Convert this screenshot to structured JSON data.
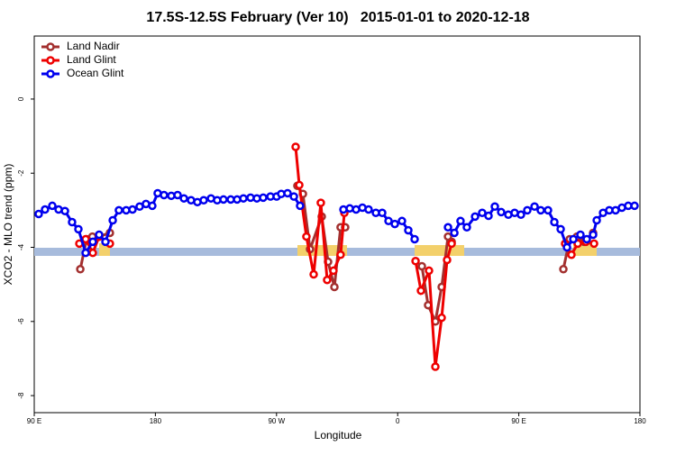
{
  "chart_data": {
    "type": "line",
    "title": "17.5S-12.5S February (Ver 10)   2015-01-01 to 2020-12-18",
    "xlabel": "Longitude",
    "ylabel": "XCO2 - MLO trend (ppm)",
    "xlim": [
      90,
      540
    ],
    "ylim": [
      -8.46,
      1.7
    ],
    "xticks": [
      {
        "value": 90,
        "label": "90 E"
      },
      180,
      {
        "value": 270,
        "label": "90 W"
      },
      {
        "value": 360,
        "label": "0"
      },
      {
        "value": 450,
        "label": "90 E"
      },
      {
        "value": 540,
        "label": "180"
      }
    ],
    "yticks": [
      -8,
      -6,
      -4,
      -2,
      0
    ],
    "legend": "top-left",
    "series": [
      {
        "name": "Land Nadir",
        "color": "#a3302f",
        "x": [
          124.2,
          128.9,
          133.2,
          138.2,
          146.2,
          215,
          285.5,
          289.6,
          294.9,
          303.6,
          308.3,
          313.0,
          317.6,
          321.0,
          350,
          378.0,
          382.6,
          388.0,
          392.7,
          397.4,
          400.1,
          440,
          483.1,
          487.8,
          493.2,
          498.5,
          505.2
        ],
        "values": [
          -4.59,
          -3.78,
          -3.71,
          -3.71,
          -3.61,
          null,
          -2.34,
          -2.56,
          -4.05,
          -3.17,
          -4.39,
          -5.07,
          -3.46,
          -3.46,
          null,
          -4.51,
          -5.56,
          -6.0,
          -5.07,
          -3.71,
          -3.85,
          null,
          -4.59,
          -3.78,
          -3.71,
          -3.85,
          -3.61
        ]
      },
      {
        "name": "Land Glint",
        "color": "#ee0000",
        "x": [
          123.5,
          128.2,
          133.5,
          138.2,
          146.2,
          215,
          284.2,
          286.9,
          292.2,
          297.6,
          302.9,
          307.6,
          312.3,
          317.6,
          320.4,
          350,
          373.3,
          377.3,
          383.3,
          388.0,
          392.7,
          396.7,
          400.1,
          440,
          484.4,
          489.1,
          493.8,
          499.8,
          505.9
        ],
        "values": [
          -3.9,
          -3.78,
          -4.15,
          -3.71,
          -3.9,
          null,
          -1.29,
          -2.32,
          -3.71,
          -4.73,
          -2.8,
          -4.88,
          -4.63,
          -4.2,
          -3.07,
          null,
          -4.37,
          -5.17,
          -4.63,
          -7.22,
          -5.9,
          -4.34,
          -3.9,
          null,
          -3.9,
          -4.2,
          -3.9,
          -3.85,
          -3.9
        ]
      },
      {
        "name": "Ocean Glint",
        "color": "#0000ee",
        "x": [
          93.3,
          98.0,
          103.4,
          108.1,
          112.8,
          118.1,
          122.8,
          128.2,
          133.5,
          138.2,
          142.9,
          148.3,
          152.9,
          158.3,
          163.0,
          168.3,
          173.0,
          177.7,
          181.7,
          186.4,
          191.8,
          196.5,
          201.2,
          206.5,
          211.2,
          215.9,
          221.3,
          225.9,
          230.6,
          236.0,
          240.7,
          245.4,
          250.7,
          255.4,
          260.1,
          265.5,
          270.1,
          273.5,
          278.2,
          282.9,
          287.5,
          303,
          319.7,
          324.4,
          329.1,
          333.8,
          338.4,
          343.8,
          348.5,
          353.2,
          357.9,
          363.2,
          367.9,
          372.6,
          385,
          397.4,
          402.1,
          406.7,
          411.4,
          417.5,
          422.8,
          427.5,
          432.2,
          436.9,
          442.2,
          446.9,
          451.6,
          456.3,
          461.7,
          466.3,
          471.7,
          476.4,
          481.1,
          485.8,
          490.5,
          495.8,
          500.5,
          505.2,
          507.9,
          512.6,
          517.2,
          521.9,
          526.6,
          531.3,
          536.0
        ],
        "values": [
          -3.1,
          -2.98,
          -2.88,
          -2.98,
          -3.02,
          -3.32,
          -3.51,
          -4.15,
          -3.85,
          -3.66,
          -3.85,
          -3.27,
          -3.0,
          -3.0,
          -2.98,
          -2.9,
          -2.83,
          -2.88,
          -2.54,
          -2.59,
          -2.61,
          -2.59,
          -2.68,
          -2.73,
          -2.78,
          -2.73,
          -2.68,
          -2.73,
          -2.71,
          -2.71,
          -2.71,
          -2.68,
          -2.66,
          -2.68,
          -2.66,
          -2.63,
          -2.63,
          -2.56,
          -2.54,
          -2.63,
          -2.88,
          null,
          -2.98,
          -2.95,
          -2.98,
          -2.93,
          -2.98,
          -3.07,
          -3.07,
          -3.29,
          -3.37,
          -3.29,
          -3.54,
          -3.78,
          null,
          -3.46,
          -3.61,
          -3.29,
          -3.46,
          -3.17,
          -3.07,
          -3.15,
          -2.9,
          -3.05,
          -3.12,
          -3.07,
          -3.12,
          -3.0,
          -2.9,
          -3.0,
          -3.0,
          -3.32,
          -3.51,
          -4.0,
          -3.78,
          -3.66,
          -3.78,
          -3.66,
          -3.27,
          -3.07,
          -3.0,
          -3.0,
          -2.93,
          -2.88,
          -2.88
        ]
      }
    ]
  }
}
